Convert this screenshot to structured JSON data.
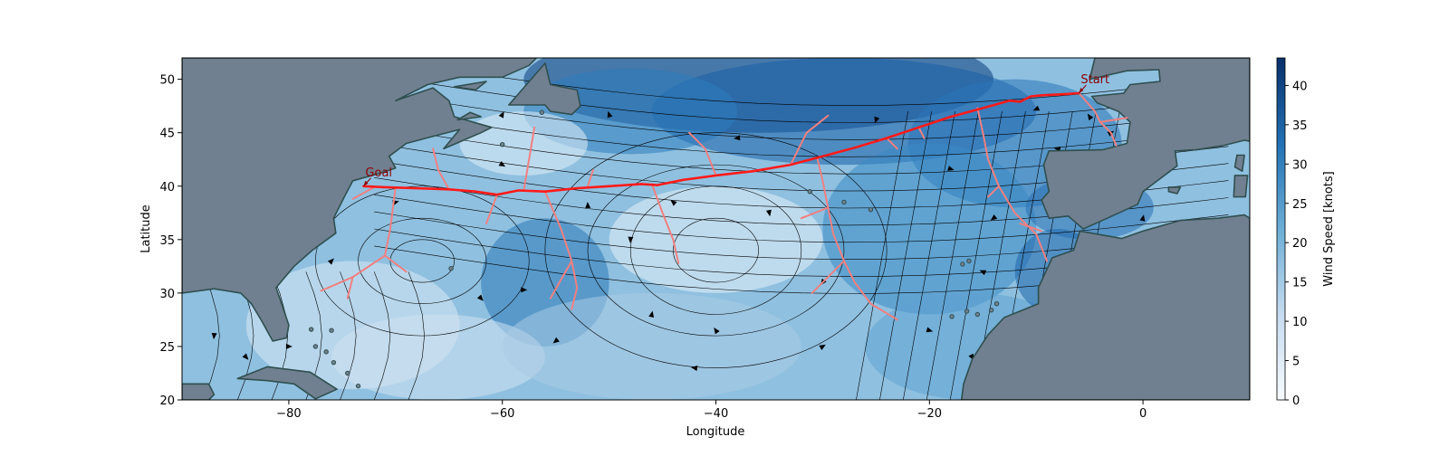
{
  "chart_data": {
    "type": "map",
    "xlabel": "Longitude",
    "ylabel": "Latitude",
    "xlim": [
      -90,
      10
    ],
    "ylim": [
      20,
      52
    ],
    "xticks": [
      -80,
      -60,
      -40,
      -20,
      0
    ],
    "yticks": [
      20,
      25,
      30,
      35,
      40,
      45,
      50
    ],
    "colorbar": {
      "label": "Wind Speed [knots]",
      "range": [
        0,
        43.5
      ],
      "ticks": [
        0,
        5,
        10,
        15,
        20,
        25,
        30,
        35,
        40
      ],
      "cmap": [
        "#f7fbff",
        "#c6dbef",
        "#6baed6",
        "#2171b5",
        "#08306b"
      ]
    },
    "colors": {
      "land": "#708090",
      "coast": "#2f4f4f",
      "optimal_route": "#ff1a1a",
      "explored_branches": "#f08080",
      "annotation": "#8b0000",
      "streamlines": "#000000"
    },
    "annotations": [
      {
        "text": "Start",
        "lon": -6.0,
        "lat": 48.7
      },
      {
        "text": "Goal",
        "lon": -73.0,
        "lat": 40.0
      }
    ],
    "optimal_route": [
      [
        -6.0,
        48.7
      ],
      [
        -7.5,
        48.6
      ],
      [
        -9.5,
        48.5
      ],
      [
        -10.5,
        48.4
      ],
      [
        -11.5,
        47.9
      ],
      [
        -12.5,
        48.0
      ],
      [
        -15.0,
        47.3
      ],
      [
        -18.0,
        46.5
      ],
      [
        -21.0,
        45.5
      ],
      [
        -24.0,
        44.5
      ],
      [
        -27.0,
        43.6
      ],
      [
        -30.0,
        42.8
      ],
      [
        -33.0,
        42.0
      ],
      [
        -36.5,
        41.4
      ],
      [
        -40.0,
        41.0
      ],
      [
        -43.0,
        40.6
      ],
      [
        -45.5,
        40.1
      ],
      [
        -47.0,
        40.2
      ],
      [
        -50.0,
        40.0
      ],
      [
        -53.0,
        39.8
      ],
      [
        -56.0,
        39.5
      ],
      [
        -58.5,
        39.6
      ],
      [
        -60.5,
        39.2
      ],
      [
        -62.5,
        39.5
      ],
      [
        -65.0,
        39.7
      ],
      [
        -68.0,
        39.8
      ],
      [
        -71.0,
        39.9
      ],
      [
        -73.0,
        40.0
      ]
    ],
    "explored_branches": [
      [
        [
          -6.0,
          48.7
        ],
        [
          -4.5,
          47.0
        ],
        [
          -4.0,
          46.0
        ],
        [
          -3.0,
          45.0
        ],
        [
          -2.5,
          43.8
        ]
      ],
      [
        [
          -4.0,
          46.0
        ],
        [
          -1.5,
          46.4
        ]
      ],
      [
        [
          -15.5,
          47.3
        ],
        [
          -15.0,
          45.0
        ],
        [
          -14.5,
          42.5
        ],
        [
          -13.5,
          40.0
        ],
        [
          -12.0,
          37.5
        ],
        [
          -10.0,
          35.5
        ],
        [
          -9.0,
          33.0
        ]
      ],
      [
        [
          -13.5,
          40.0
        ],
        [
          -14.5,
          39.0
        ]
      ],
      [
        [
          -11.5,
          36.5
        ],
        [
          -9.5,
          35.8
        ]
      ],
      [
        [
          -30.5,
          42.6
        ],
        [
          -30.0,
          40.5
        ],
        [
          -29.5,
          38.0
        ],
        [
          -29.0,
          35.5
        ],
        [
          -28.0,
          33.0
        ],
        [
          -27.0,
          31.0
        ],
        [
          -25.5,
          29.0
        ],
        [
          -23.0,
          27.5
        ]
      ],
      [
        [
          -28.0,
          33.0
        ],
        [
          -31.0,
          30.0
        ]
      ],
      [
        [
          -29.5,
          38.0
        ],
        [
          -32.0,
          37.0
        ]
      ],
      [
        [
          -33.0,
          42.0
        ],
        [
          -31.5,
          45.0
        ],
        [
          -29.5,
          46.6
        ]
      ],
      [
        [
          -40.0,
          41.0
        ],
        [
          -41.0,
          43.5
        ],
        [
          -42.5,
          45.0
        ]
      ],
      [
        [
          -46.0,
          40.2
        ],
        [
          -45.0,
          37.5
        ],
        [
          -44.0,
          35.0
        ],
        [
          -43.5,
          32.8
        ]
      ],
      [
        [
          -24.0,
          44.5
        ],
        [
          -23.0,
          43.5
        ]
      ],
      [
        [
          -21.0,
          45.5
        ],
        [
          -20.5,
          44.5
        ]
      ],
      [
        [
          -58.0,
          39.6
        ],
        [
          -57.5,
          42.5
        ],
        [
          -57.0,
          45.5
        ]
      ],
      [
        [
          -56.0,
          39.5
        ],
        [
          -54.5,
          36.0
        ],
        [
          -53.5,
          33.0
        ],
        [
          -53.0,
          30.5
        ],
        [
          -53.5,
          28.5
        ]
      ],
      [
        [
          -53.5,
          33.0
        ],
        [
          -55.5,
          29.5
        ]
      ],
      [
        [
          -60.5,
          39.2
        ],
        [
          -61.5,
          36.5
        ]
      ],
      [
        [
          -65.0,
          39.7
        ],
        [
          -66.0,
          41.5
        ],
        [
          -66.5,
          43.5
        ]
      ],
      [
        [
          -70.0,
          39.9
        ],
        [
          -70.5,
          36.0
        ],
        [
          -71.0,
          33.5
        ],
        [
          -74.0,
          31.5
        ],
        [
          -77.0,
          30.2
        ]
      ],
      [
        [
          -71.0,
          33.5
        ],
        [
          -69.0,
          32.0
        ]
      ],
      [
        [
          -74.0,
          31.5
        ],
        [
          -74.5,
          29.5
        ]
      ],
      [
        [
          -72.0,
          39.9
        ],
        [
          -74.0,
          38.8
        ]
      ],
      [
        [
          -52.0,
          40.0
        ],
        [
          -51.5,
          41.5
        ]
      ]
    ],
    "land": [
      [
        [
          -90,
          52
        ],
        [
          -90,
          30.0
        ],
        [
          -87.0,
          30.4
        ],
        [
          -84.5,
          30.0
        ],
        [
          -83.5,
          29.0
        ],
        [
          -82.6,
          27.5
        ],
        [
          -81.5,
          25.5
        ],
        [
          -80.2,
          25.8
        ],
        [
          -80.0,
          27.0
        ],
        [
          -80.6,
          28.8
        ],
        [
          -81.2,
          30.5
        ],
        [
          -79.5,
          32.5
        ],
        [
          -77.8,
          34.0
        ],
        [
          -75.6,
          35.6
        ],
        [
          -75.8,
          37.0
        ],
        [
          -74.8,
          39.0
        ],
        [
          -74.0,
          40.5
        ],
        [
          -71.5,
          41.2
        ],
        [
          -70.0,
          41.7
        ],
        [
          -70.6,
          42.8
        ],
        [
          -69.0,
          44.0
        ],
        [
          -66.0,
          44.8
        ],
        [
          -64.0,
          45.3
        ],
        [
          -65.5,
          43.5
        ],
        [
          -62.0,
          45.0
        ],
        [
          -61.0,
          45.5
        ],
        [
          -64.5,
          46.5
        ],
        [
          -65.0,
          48.0
        ],
        [
          -66.5,
          49.2
        ],
        [
          -70.0,
          48.0
        ],
        [
          -67.0,
          49.5
        ],
        [
          -64.0,
          50.2
        ],
        [
          -60.0,
          50.2
        ],
        [
          -57.5,
          51.3
        ],
        [
          -56.8,
          52
        ],
        [
          -90,
          52
        ]
      ],
      [
        [
          -90,
          20
        ],
        [
          -90,
          21.5
        ],
        [
          -87.5,
          21.5
        ],
        [
          -87.0,
          20.5
        ],
        [
          -87.5,
          20.0
        ]
      ],
      [
        [
          -84.8,
          22.0
        ],
        [
          -82.0,
          23.1
        ],
        [
          -78.0,
          22.6
        ],
        [
          -75.5,
          21.0
        ],
        [
          -77.5,
          20.1
        ],
        [
          -79.5,
          21.5
        ],
        [
          -82.0,
          21.8
        ]
      ],
      [
        [
          -59.4,
          47.6
        ],
        [
          -56.0,
          51.5
        ],
        [
          -55.5,
          49.5
        ],
        [
          -53.0,
          49.0
        ],
        [
          -52.7,
          47.5
        ],
        [
          -53.5,
          46.7
        ],
        [
          -55.5,
          47.0
        ],
        [
          -56.0,
          47.6
        ]
      ],
      [
        [
          -64.2,
          46.2
        ],
        [
          -62.0,
          46.5
        ],
        [
          -63.0,
          46.9
        ]
      ],
      [
        [
          -64.5,
          49.3
        ],
        [
          -61.5,
          49.8
        ],
        [
          -62.5,
          49.0
        ]
      ],
      [
        [
          10,
          52
        ],
        [
          -4.5,
          52
        ],
        [
          -5.0,
          50.0
        ],
        [
          -1.5,
          50.8
        ],
        [
          1.5,
          50.9
        ],
        [
          1.6,
          49.8
        ],
        [
          -1.2,
          49.5
        ],
        [
          -1.8,
          48.7
        ],
        [
          -4.8,
          48.4
        ],
        [
          -4.3,
          47.8
        ],
        [
          -2.3,
          47.0
        ],
        [
          -1.2,
          46.0
        ],
        [
          -1.5,
          44.0
        ],
        [
          -3.8,
          43.4
        ],
        [
          -8.8,
          43.3
        ],
        [
          -9.3,
          42.0
        ],
        [
          -8.8,
          39.5
        ],
        [
          -9.5,
          38.7
        ],
        [
          -8.8,
          37.0
        ],
        [
          -7.0,
          37.2
        ],
        [
          -5.6,
          36.0
        ],
        [
          -4.0,
          36.7
        ],
        [
          -0.5,
          38.3
        ],
        [
          0.0,
          39.5
        ],
        [
          3.2,
          41.9
        ],
        [
          3.0,
          43.3
        ],
        [
          5.0,
          43.4
        ],
        [
          7.5,
          43.8
        ],
        [
          9.5,
          44.3
        ],
        [
          10,
          44.2
        ]
      ],
      [
        [
          10,
          37.0
        ],
        [
          9.5,
          37.3
        ],
        [
          7.0,
          37.0
        ],
        [
          3.5,
          36.8
        ],
        [
          0.0,
          35.8
        ],
        [
          -2.0,
          35.1
        ],
        [
          -5.9,
          35.8
        ],
        [
          -6.5,
          34.0
        ],
        [
          -8.5,
          33.3
        ],
        [
          -9.8,
          30.5
        ],
        [
          -9.8,
          29.0
        ],
        [
          -13.0,
          27.7
        ],
        [
          -14.5,
          26.1
        ],
        [
          -16.0,
          23.8
        ],
        [
          -16.8,
          21.5
        ],
        [
          -17.0,
          20.0
        ],
        [
          10,
          20
        ]
      ],
      [
        [
          8.6,
          41.0
        ],
        [
          9.8,
          41.0
        ],
        [
          9.6,
          39.0
        ],
        [
          8.5,
          39.0
        ]
      ],
      [
        [
          8.8,
          42.9
        ],
        [
          9.5,
          42.9
        ],
        [
          9.3,
          41.4
        ],
        [
          8.6,
          41.8
        ]
      ],
      [
        [
          2.4,
          39.9
        ],
        [
          3.5,
          39.9
        ],
        [
          3.2,
          39.3
        ],
        [
          2.4,
          39.5
        ]
      ]
    ],
    "islands": [
      [
        -77.5,
        25.0
      ],
      [
        -76.5,
        24.5
      ],
      [
        -75.8,
        23.5
      ],
      [
        -74.5,
        22.5
      ],
      [
        -73.5,
        21.3
      ],
      [
        -76.0,
        26.5
      ],
      [
        -77.9,
        26.6
      ],
      [
        -64.8,
        32.3
      ],
      [
        -28.0,
        38.5
      ],
      [
        -25.5,
        37.8
      ],
      [
        -31.2,
        39.5
      ],
      [
        -16.9,
        32.7
      ],
      [
        -16.3,
        33.0
      ],
      [
        -15.5,
        28.0
      ],
      [
        -16.5,
        28.3
      ],
      [
        -13.7,
        29.0
      ],
      [
        -17.9,
        27.8
      ],
      [
        -14.2,
        28.4
      ],
      [
        -60.0,
        43.9
      ],
      [
        -56.3,
        46.9
      ]
    ]
  }
}
